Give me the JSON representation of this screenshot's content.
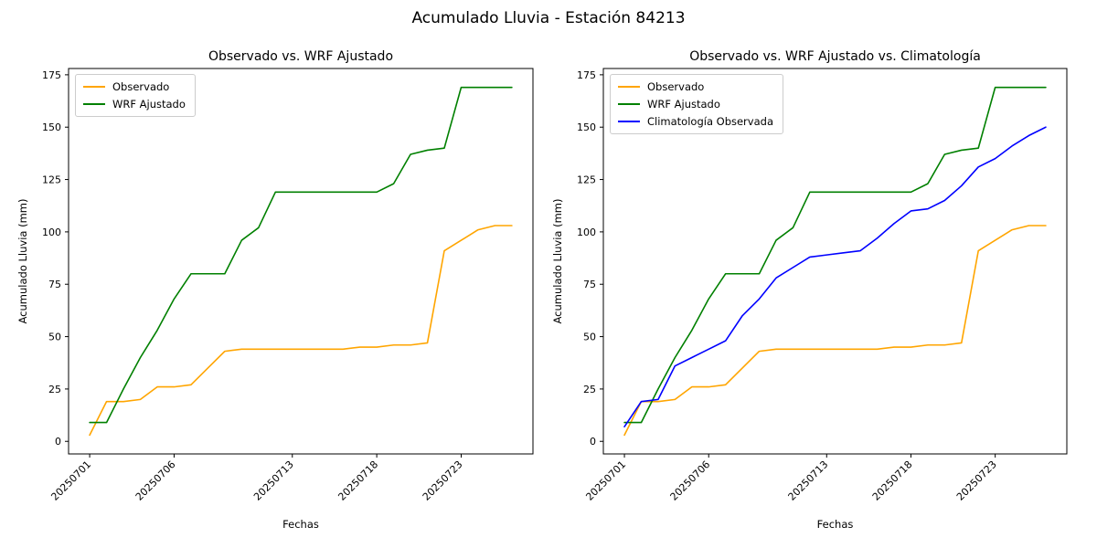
{
  "figure_title": "Acumulado Lluvia - Estación 84213",
  "chart_data": [
    {
      "type": "line",
      "title": "Observado vs. WRF Ajustado",
      "xlabel": "Fechas",
      "ylabel": "Acumulado Lluvia (mm)",
      "x": [
        "20250701",
        "20250702",
        "20250703",
        "20250704",
        "20250705",
        "20250706",
        "20250707",
        "20250708",
        "20250709",
        "20250710",
        "20250711",
        "20250712",
        "20250713",
        "20250714",
        "20250715",
        "20250716",
        "20250717",
        "20250718",
        "20250719",
        "20250720",
        "20250721",
        "20250722",
        "20250723",
        "20250724",
        "20250725",
        "20250726"
      ],
      "xtick_labels": [
        "20250701",
        "20250706",
        "20250713",
        "20250718",
        "20250723"
      ],
      "xtick_indices": [
        0,
        5,
        12,
        17,
        22
      ],
      "yticks": [
        0,
        25,
        50,
        75,
        100,
        125,
        150,
        175
      ],
      "ylim": [
        -6,
        178
      ],
      "grid": false,
      "legend_position": "upper left",
      "series": [
        {
          "name": "Observado",
          "color": "#ffa500",
          "values": [
            3,
            19,
            19,
            20,
            26,
            26,
            27,
            35,
            43,
            44,
            44,
            44,
            44,
            44,
            44,
            44,
            45,
            45,
            46,
            46,
            47,
            91,
            96,
            101,
            103,
            103
          ]
        },
        {
          "name": "WRF Ajustado",
          "color": "#008000",
          "values": [
            9,
            9,
            25,
            40,
            53,
            68,
            80,
            80,
            80,
            96,
            102,
            119,
            119,
            119,
            119,
            119,
            119,
            119,
            123,
            137,
            139,
            140,
            169,
            169,
            169,
            169
          ]
        }
      ]
    },
    {
      "type": "line",
      "title": "Observado vs. WRF Ajustado vs. Climatología",
      "xlabel": "Fechas",
      "ylabel": "Acumulado Lluvia (mm)",
      "x": [
        "20250701",
        "20250702",
        "20250703",
        "20250704",
        "20250705",
        "20250706",
        "20250707",
        "20250708",
        "20250709",
        "20250710",
        "20250711",
        "20250712",
        "20250713",
        "20250714",
        "20250715",
        "20250716",
        "20250717",
        "20250718",
        "20250719",
        "20250720",
        "20250721",
        "20250722",
        "20250723",
        "20250724",
        "20250725",
        "20250726"
      ],
      "xtick_labels": [
        "20250701",
        "20250706",
        "20250713",
        "20250718",
        "20250723"
      ],
      "xtick_indices": [
        0,
        5,
        12,
        17,
        22
      ],
      "yticks": [
        0,
        25,
        50,
        75,
        100,
        125,
        150,
        175
      ],
      "ylim": [
        -6,
        178
      ],
      "grid": false,
      "legend_position": "upper left",
      "series": [
        {
          "name": "Observado",
          "color": "#ffa500",
          "values": [
            3,
            19,
            19,
            20,
            26,
            26,
            27,
            35,
            43,
            44,
            44,
            44,
            44,
            44,
            44,
            44,
            45,
            45,
            46,
            46,
            47,
            91,
            96,
            101,
            103,
            103
          ]
        },
        {
          "name": "WRF Ajustado",
          "color": "#008000",
          "values": [
            9,
            9,
            25,
            40,
            53,
            68,
            80,
            80,
            80,
            96,
            102,
            119,
            119,
            119,
            119,
            119,
            119,
            119,
            123,
            137,
            139,
            140,
            169,
            169,
            169,
            169
          ]
        },
        {
          "name": "Climatología Observada",
          "color": "#0000ff",
          "values": [
            7,
            19,
            20,
            36,
            40,
            44,
            48,
            60,
            68,
            78,
            83,
            88,
            89,
            90,
            91,
            97,
            104,
            110,
            111,
            115,
            122,
            131,
            135,
            141,
            146,
            150
          ]
        }
      ]
    }
  ]
}
